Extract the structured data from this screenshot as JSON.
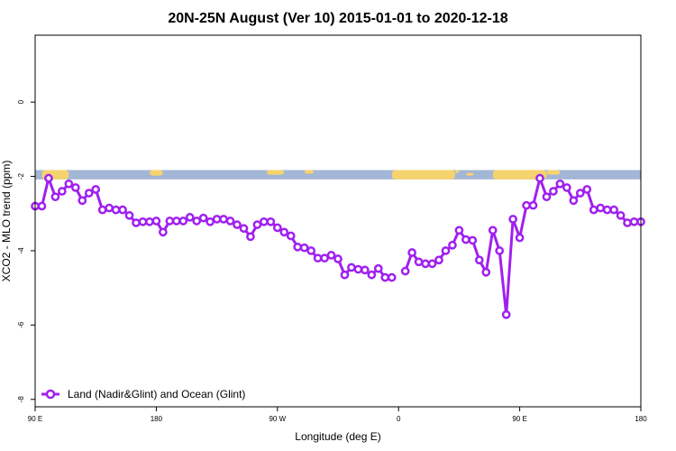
{
  "chart_data": {
    "type": "line",
    "title": "20N-25N August (Ver 10)   2015-01-01 to 2020-12-18",
    "xlabel": "Longitude (deg E)",
    "ylabel": "XCO2 - MLO trend (ppm)",
    "xlim": [
      90,
      450
    ],
    "ylim": [
      -8.2,
      1.8
    ],
    "x_ticks": [
      {
        "value": 90,
        "label": "90 E"
      },
      {
        "value": 180,
        "label": "180"
      },
      {
        "value": 270,
        "label": "90 W"
      },
      {
        "value": 360,
        "label": "0"
      },
      {
        "value": 450,
        "label": "90 E"
      },
      {
        "value": 540,
        "label": "180"
      }
    ],
    "y_ticks": [
      {
        "value": 0,
        "label": "0"
      },
      {
        "value": -2,
        "label": "-2"
      },
      {
        "value": -4,
        "label": "-4"
      },
      {
        "value": -6,
        "label": "-6"
      },
      {
        "value": -8,
        "label": "-8"
      }
    ],
    "x_axis_note": "Longitude axis spans 90 E through 180 E (one full wrap); values in degrees east, continued past 360.",
    "map_strip": {
      "ymin": -2.08,
      "ymax": -1.83,
      "ocean_color": "#a3b6d6",
      "land_color": "#f5d36e"
    },
    "series": [
      {
        "name": "Land (Nadir&Glint) and Ocean (Glint)",
        "color": "#a020f0",
        "segments": [
          {
            "x": [
              90,
              95,
              100,
              105,
              110,
              115,
              120,
              125,
              130,
              135,
              140,
              145,
              150,
              155,
              160,
              165,
              170,
              175,
              180,
              185,
              190,
              195,
              200,
              205,
              210,
              215,
              220,
              225,
              230,
              235,
              240,
              245,
              250,
              255,
              260,
              265,
              270,
              275,
              280,
              285,
              290,
              295,
              300,
              305,
              310,
              315,
              320,
              325,
              330,
              335,
              340,
              345,
              350,
              355
            ],
            "y": [
              -2.8,
              -2.8,
              -2.05,
              -2.55,
              -2.4,
              -2.2,
              -2.3,
              -2.65,
              -2.45,
              -2.35,
              -2.9,
              -2.85,
              -2.9,
              -2.9,
              -3.05,
              -3.25,
              -3.22,
              -3.22,
              -3.2,
              -3.5,
              -3.2,
              -3.2,
              -3.2,
              -3.1,
              -3.2,
              -3.12,
              -3.22,
              -3.15,
              -3.15,
              -3.2,
              -3.3,
              -3.4,
              -3.62,
              -3.3,
              -3.22,
              -3.22,
              -3.38,
              -3.5,
              -3.6,
              -3.9,
              -3.92,
              -4.0,
              -4.2,
              -4.2,
              -4.12,
              -4.22,
              -4.65,
              -4.45,
              -4.5,
              -4.52,
              -4.65,
              -4.48,
              -4.72,
              -4.72
            ]
          },
          {
            "x": [
              365,
              370,
              375,
              380,
              385,
              390,
              395,
              400,
              405,
              410,
              415,
              420,
              425,
              430,
              435,
              440,
              445,
              450,
              455,
              460,
              465,
              470,
              475,
              480,
              485,
              490,
              495,
              500,
              505,
              510,
              515,
              520,
              525,
              530,
              535,
              540
            ],
            "y": [
              -4.55,
              -4.05,
              -4.3,
              -4.35,
              -4.35,
              -4.25,
              -4.0,
              -3.85,
              -3.45,
              -3.7,
              -3.72,
              -4.25,
              -4.58,
              -3.45,
              -4.0,
              -5.72,
              -3.15,
              -3.65,
              -2.78,
              -2.78,
              -2.05,
              -2.55,
              -2.4,
              -2.2,
              -2.3,
              -2.65,
              -2.45,
              -2.35,
              -2.9,
              -2.85,
              -2.9,
              -2.9,
              -3.05,
              -3.25,
              -3.22,
              -3.22
            ]
          }
        ]
      }
    ],
    "legend": {
      "position": "bottom-left",
      "label": "Land (Nadir&Glint) and Ocean (Glint)"
    },
    "grid": false
  }
}
